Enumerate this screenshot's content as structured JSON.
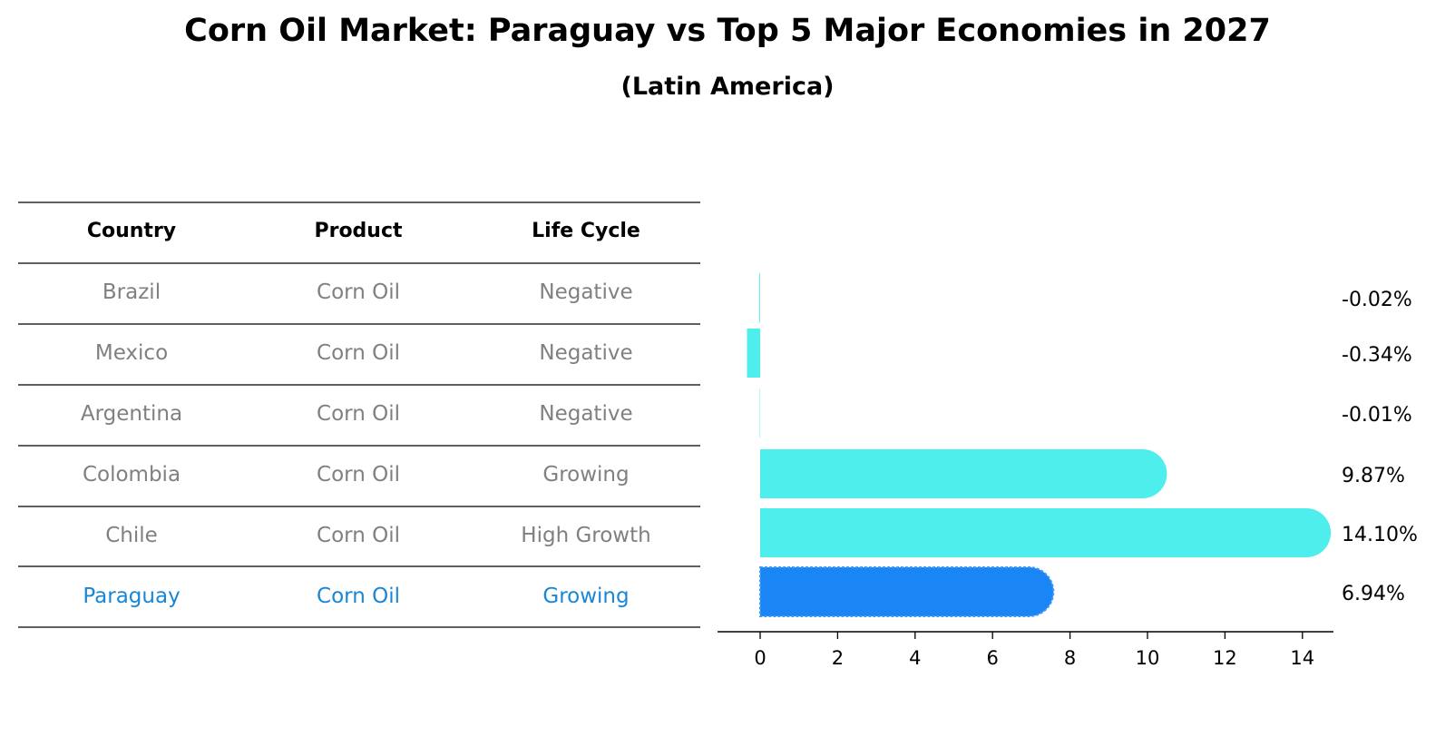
{
  "title": "Corn Oil Market: Paraguay vs Top 5 Major Economies in 2027",
  "subtitle": "(Latin America)",
  "table": {
    "headers": [
      "Country",
      "Product",
      "Life Cycle"
    ],
    "rows": [
      {
        "country": "Brazil",
        "product": "Corn Oil",
        "life_cycle": "Negative",
        "highlight": false
      },
      {
        "country": "Mexico",
        "product": "Corn Oil",
        "life_cycle": "Negative",
        "highlight": false
      },
      {
        "country": "Argentina",
        "product": "Corn Oil",
        "life_cycle": "Negative",
        "highlight": false
      },
      {
        "country": "Colombia",
        "product": "Corn Oil",
        "life_cycle": "Growing",
        "highlight": false
      },
      {
        "country": "Chile",
        "product": "Corn Oil",
        "life_cycle": "High Growth",
        "highlight": false
      },
      {
        "country": "Paraguay",
        "product": "Corn Oil",
        "life_cycle": "Growing",
        "highlight": true
      }
    ]
  },
  "colors": {
    "base_bar": "#4eeeec",
    "highlight_bar": "#1a86f5",
    "muted_text": "#808080",
    "highlight_text": "#1a86d6"
  },
  "chart_data": {
    "type": "bar",
    "orientation": "horizontal",
    "categories": [
      "Brazil",
      "Mexico",
      "Argentina",
      "Colombia",
      "Chile",
      "Paraguay"
    ],
    "values": [
      -0.02,
      -0.34,
      -0.01,
      9.87,
      14.1,
      6.94
    ],
    "value_labels": [
      "-0.02%",
      "-0.34%",
      "-0.01%",
      "9.87%",
      "14.10%",
      "6.94%"
    ],
    "xlim": [
      -1.1,
      14.8
    ],
    "xticks": [
      0,
      2,
      4,
      6,
      8,
      10,
      12,
      14
    ],
    "grid": false
  }
}
